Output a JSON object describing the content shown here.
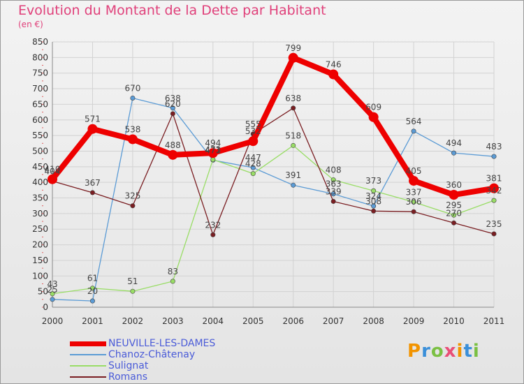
{
  "title": "Evolution du Montant de la Dette par Habitant",
  "unit": "(en €)",
  "logo": {
    "text": "Proxiti",
    "colors": [
      "#f29400",
      "#3a8fd9",
      "#7bc043",
      "#e94e77"
    ]
  },
  "chart_data": {
    "type": "line",
    "title": "Evolution du Montant de la Dette par Habitant",
    "ylabel": "(en €)",
    "xlabel": "",
    "categories": [
      "2000",
      "2001",
      "2002",
      "2003",
      "2004",
      "2005",
      "2006",
      "2007",
      "2008",
      "2009",
      "2010",
      "2011"
    ],
    "ylim": [
      0,
      850
    ],
    "yticks": [
      0,
      50,
      100,
      150,
      200,
      250,
      300,
      350,
      400,
      450,
      500,
      550,
      600,
      650,
      700,
      750,
      800,
      850
    ],
    "grid": true,
    "legend_position": "bottom",
    "series": [
      {
        "name": "NEUVILLE-LES-DAMES",
        "color": "#ee0000",
        "values": [
          410,
          571,
          538,
          488,
          494,
          532,
          799,
          746,
          609,
          405,
          360,
          381
        ]
      },
      {
        "name": "Chanoz-Châtenay",
        "color": "#5b9bd5",
        "values": [
          25,
          20,
          670,
          638,
          471,
          447,
          391,
          363,
          324,
          564,
          494,
          483
        ]
      },
      {
        "name": "Sulignat",
        "color": "#99dd66",
        "values": [
          43,
          61,
          51,
          83,
          473,
          428,
          518,
          408,
          373,
          337,
          295,
          342
        ]
      },
      {
        "name": "Romans",
        "color": "#7a1e22",
        "values": [
          404,
          367,
          325,
          620,
          232,
          555,
          638,
          339,
          308,
          306,
          270,
          235
        ]
      }
    ]
  }
}
